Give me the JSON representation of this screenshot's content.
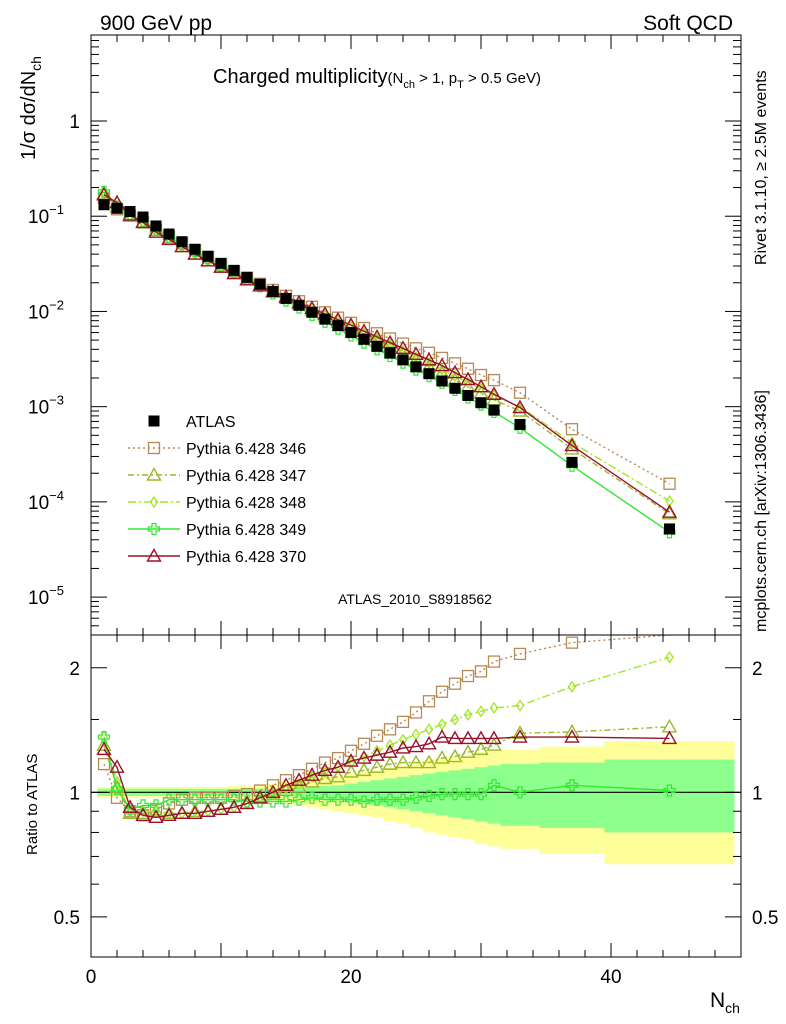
{
  "header": {
    "left": "900 GeV pp",
    "right": "Soft QCD"
  },
  "side_labels": {
    "top": "Rivet 3.1.10, ≥ 2.5M events",
    "bottom": "mcplots.cern.ch [arXiv:1306.3436]"
  },
  "chart_data": [
    {
      "type": "scatter",
      "panel": "main",
      "title_main": "Charged multiplicity",
      "title_sub": "(N",
      "title_sub_ch": "ch",
      "title_sub_mid": " > 1, p",
      "title_sub_t": "T",
      "title_sub_end": " > 0.5 GeV)",
      "ylabel_pre": "1/σ dσ/dN",
      "ylabel_sub": "ch",
      "yscale": "log",
      "xlim": [
        0,
        50
      ],
      "ylim": [
        4e-06,
        8
      ],
      "yticks": [
        {
          "value": 1,
          "label": "1",
          "exp": ""
        },
        {
          "value": 0.1,
          "label": "10",
          "exp": "−1"
        },
        {
          "value": 0.01,
          "label": "10",
          "exp": "−2"
        },
        {
          "value": 0.001,
          "label": "10",
          "exp": "−3"
        },
        {
          "value": 0.0001,
          "label": "10",
          "exp": "−4"
        },
        {
          "value": 1e-05,
          "label": "10",
          "exp": "−5"
        }
      ],
      "analysis_label": "ATLAS_2010_S8918562",
      "legend_position": "lower-left",
      "data": {
        "name": "ATLAS",
        "color": "#000000",
        "x": [
          1,
          2,
          3,
          4,
          5,
          6,
          7,
          8,
          9,
          10,
          11,
          12,
          13,
          14,
          15,
          16,
          17,
          18,
          19,
          20,
          21,
          22,
          23,
          24,
          25,
          26,
          27,
          28,
          29,
          30,
          31,
          33,
          37,
          44.5
        ],
        "y": [
          0.132,
          0.121,
          0.112,
          0.098,
          0.079,
          0.065,
          0.054,
          0.045,
          0.038,
          0.032,
          0.027,
          0.0228,
          0.0193,
          0.0162,
          0.0137,
          0.0116,
          0.0098,
          0.0083,
          0.0071,
          0.006,
          0.0051,
          0.0043,
          0.00365,
          0.0031,
          0.00262,
          0.00222,
          0.00186,
          0.00156,
          0.00131,
          0.0011,
          0.00092,
          0.00065,
          0.00026,
          5.2e-05
        ],
        "y_ratio_band": "see bands"
      },
      "series": [
        {
          "name": "Pythia 6.428 346",
          "color": "#b58a55",
          "marker": "square-open",
          "dash": "2,3",
          "x": [
            1,
            2,
            3,
            4,
            5,
            6,
            7,
            8,
            9,
            10,
            11,
            12,
            13,
            14,
            15,
            16,
            17,
            18,
            19,
            20,
            21,
            22,
            23,
            24,
            25,
            26,
            27,
            28,
            29,
            30,
            31,
            33,
            37,
            44.5
          ],
          "y": [
            0.155,
            0.118,
            0.101,
            0.086,
            0.072,
            0.061,
            0.052,
            0.044,
            0.037,
            0.031,
            0.0265,
            0.0226,
            0.0195,
            0.0168,
            0.0146,
            0.0128,
            0.0112,
            0.0098,
            0.0086,
            0.0076,
            0.0067,
            0.0059,
            0.0052,
            0.0046,
            0.0041,
            0.00368,
            0.00325,
            0.00285,
            0.0025,
            0.00215,
            0.0019,
            0.0014,
            0.00058,
            0.000155
          ]
        },
        {
          "name": "Pythia 6.428 347",
          "color": "#9ab82b",
          "marker": "triangle-open",
          "dash": "6,3,2,3",
          "x": [
            1,
            2,
            3,
            4,
            5,
            6,
            7,
            8,
            9,
            10,
            11,
            12,
            13,
            14,
            15,
            16,
            17,
            18,
            19,
            20,
            21,
            22,
            23,
            24,
            25,
            26,
            27,
            28,
            29,
            30,
            31,
            33,
            37,
            44.5
          ],
          "y": [
            0.172,
            0.125,
            0.1,
            0.087,
            0.071,
            0.058,
            0.048,
            0.04,
            0.034,
            0.0292,
            0.025,
            0.0215,
            0.0186,
            0.016,
            0.0138,
            0.012,
            0.0103,
            0.0089,
            0.0077,
            0.0067,
            0.0057,
            0.0049,
            0.00425,
            0.00362,
            0.00308,
            0.00262,
            0.00225,
            0.0019,
            0.00162,
            0.00138,
            0.00118,
            0.0009,
            0.00036,
            7.5e-05
          ]
        },
        {
          "name": "Pythia 6.428 348",
          "color": "#a3e626",
          "marker": "diamond-open",
          "dash": "8,3,2,3",
          "x": [
            1,
            2,
            3,
            4,
            5,
            6,
            7,
            8,
            9,
            10,
            11,
            12,
            13,
            14,
            15,
            16,
            17,
            18,
            19,
            20,
            21,
            22,
            23,
            24,
            25,
            26,
            27,
            28,
            29,
            30,
            31,
            33,
            37,
            44.5
          ],
          "y": [
            0.18,
            0.128,
            0.101,
            0.088,
            0.071,
            0.058,
            0.048,
            0.04,
            0.034,
            0.0292,
            0.025,
            0.0215,
            0.0186,
            0.0161,
            0.0139,
            0.0121,
            0.0105,
            0.0091,
            0.0079,
            0.0069,
            0.006,
            0.0052,
            0.0045,
            0.00385,
            0.0033,
            0.00285,
            0.00245,
            0.0021,
            0.0018,
            0.00155,
            0.00132,
            0.001,
            0.00042,
            0.000102
          ]
        },
        {
          "name": "Pythia 6.428 349",
          "color": "#33e633",
          "marker": "cross-open",
          "dash": "",
          "x": [
            1,
            2,
            3,
            4,
            5,
            6,
            7,
            8,
            9,
            10,
            11,
            12,
            13,
            14,
            15,
            16,
            17,
            18,
            19,
            20,
            21,
            22,
            23,
            24,
            25,
            26,
            27,
            28,
            29,
            30,
            31,
            33,
            37,
            44.5
          ],
          "y": [
            0.18,
            0.125,
            0.101,
            0.088,
            0.072,
            0.061,
            0.051,
            0.043,
            0.036,
            0.0305,
            0.0258,
            0.0217,
            0.0184,
            0.0154,
            0.013,
            0.011,
            0.0092,
            0.0078,
            0.0066,
            0.0056,
            0.0047,
            0.004,
            0.0034,
            0.0029,
            0.00245,
            0.0021,
            0.00178,
            0.0015,
            0.00125,
            0.00105,
            0.00088,
            0.0006,
            0.00024,
            4.8e-05
          ]
        },
        {
          "name": "Pythia 6.428 370",
          "color": "#99122b",
          "marker": "triangle-open",
          "dash": "",
          "x": [
            1,
            2,
            3,
            4,
            5,
            6,
            7,
            8,
            9,
            10,
            11,
            12,
            13,
            14,
            15,
            16,
            17,
            18,
            19,
            20,
            21,
            22,
            23,
            24,
            25,
            26,
            27,
            28,
            29,
            30,
            31,
            33,
            37,
            44.5
          ],
          "y": [
            0.168,
            0.139,
            0.103,
            0.086,
            0.068,
            0.057,
            0.048,
            0.04,
            0.034,
            0.0292,
            0.025,
            0.0215,
            0.0186,
            0.0162,
            0.0142,
            0.0124,
            0.0108,
            0.0094,
            0.0082,
            0.0072,
            0.0062,
            0.0054,
            0.0047,
            0.0041,
            0.00355,
            0.0031,
            0.0027,
            0.00228,
            0.00193,
            0.00162,
            0.00135,
            0.00098,
            0.00039,
            7.8e-05
          ]
        }
      ]
    },
    {
      "type": "line",
      "panel": "ratio",
      "ylabel": "Ratio to ATLAS",
      "xlabel_pre": "N",
      "xlabel_sub": "ch",
      "yscale": "log",
      "xlim": [
        0,
        50
      ],
      "ylim": [
        0.4,
        2.4
      ],
      "xticks": [
        0,
        20,
        40
      ],
      "yticks": [
        0.5,
        1,
        2
      ],
      "reference": 1,
      "bands": {
        "edges": [
          0.5,
          1.5,
          2.5,
          3.5,
          4.5,
          5.5,
          6.5,
          7.5,
          8.5,
          9.5,
          10.5,
          11.5,
          12.5,
          13.5,
          14.5,
          15.5,
          16.5,
          17.5,
          18.5,
          19.5,
          20.5,
          21.5,
          22.5,
          23.5,
          24.5,
          25.5,
          26.5,
          27.5,
          28.5,
          29.5,
          30.5,
          31.5,
          34.5,
          39.5,
          49.5
        ],
        "inner_color": "#8cff8c",
        "outer_color": "#ffff99",
        "inner_half": [
          0.02,
          0.02,
          0.02,
          0.02,
          0.02,
          0.02,
          0.02,
          0.02,
          0.02,
          0.02,
          0.02,
          0.02,
          0.02,
          0.02,
          0.02,
          0.025,
          0.03,
          0.035,
          0.04,
          0.05,
          0.06,
          0.07,
          0.08,
          0.09,
          0.1,
          0.11,
          0.12,
          0.13,
          0.14,
          0.15,
          0.16,
          0.17,
          0.18,
          0.2
        ],
        "outer_half": [
          0.03,
          0.03,
          0.03,
          0.03,
          0.03,
          0.03,
          0.03,
          0.03,
          0.03,
          0.03,
          0.035,
          0.04,
          0.045,
          0.05,
          0.06,
          0.07,
          0.08,
          0.09,
          0.1,
          0.11,
          0.12,
          0.13,
          0.15,
          0.16,
          0.18,
          0.2,
          0.21,
          0.22,
          0.23,
          0.25,
          0.26,
          0.27,
          0.29,
          0.33
        ]
      },
      "series": [
        {
          "name": "Pythia 6.428 346",
          "color": "#b58a55",
          "x": [
            1,
            2,
            3,
            4,
            5,
            6,
            7,
            8,
            9,
            10,
            11,
            12,
            13,
            14,
            15,
            16,
            17,
            18,
            19,
            20,
            21,
            22,
            23,
            24,
            25,
            26,
            27,
            28,
            29,
            30,
            31,
            33,
            37,
            44.5
          ],
          "y": [
            1.17,
            0.97,
            0.9,
            0.88,
            0.91,
            0.94,
            0.96,
            0.97,
            0.97,
            0.97,
            0.98,
            0.99,
            1.01,
            1.04,
            1.07,
            1.1,
            1.14,
            1.18,
            1.21,
            1.26,
            1.31,
            1.37,
            1.42,
            1.48,
            1.56,
            1.66,
            1.75,
            1.83,
            1.91,
            1.96,
            2.07,
            2.16,
            2.3,
            2.6
          ]
        },
        {
          "name": "Pythia 6.428 347",
          "color": "#9ab82b",
          "x": [
            1,
            2,
            3,
            4,
            5,
            6,
            7,
            8,
            9,
            10,
            11,
            12,
            13,
            14,
            15,
            16,
            17,
            18,
            19,
            20,
            21,
            22,
            23,
            24,
            25,
            26,
            27,
            28,
            29,
            30,
            31,
            33,
            37,
            44.5
          ],
          "y": [
            1.3,
            1.03,
            0.89,
            0.89,
            0.9,
            0.89,
            0.89,
            0.9,
            0.9,
            0.91,
            0.92,
            0.94,
            0.97,
            0.99,
            1.01,
            1.03,
            1.06,
            1.08,
            1.09,
            1.12,
            1.13,
            1.15,
            1.17,
            1.18,
            1.18,
            1.18,
            1.21,
            1.22,
            1.25,
            1.27,
            1.3,
            1.39,
            1.4,
            1.44
          ]
        },
        {
          "name": "Pythia 6.428 348",
          "color": "#a3e626",
          "x": [
            1,
            2,
            3,
            4,
            5,
            6,
            7,
            8,
            9,
            10,
            11,
            12,
            13,
            14,
            15,
            16,
            17,
            18,
            19,
            20,
            21,
            22,
            23,
            24,
            25,
            26,
            27,
            28,
            29,
            30,
            31,
            33,
            37,
            44.5
          ],
          "y": [
            1.36,
            1.06,
            0.9,
            0.9,
            0.9,
            0.89,
            0.89,
            0.9,
            0.9,
            0.91,
            0.92,
            0.94,
            0.97,
            1.0,
            1.02,
            1.05,
            1.09,
            1.12,
            1.15,
            1.18,
            1.22,
            1.26,
            1.3,
            1.34,
            1.38,
            1.42,
            1.46,
            1.5,
            1.54,
            1.57,
            1.6,
            1.62,
            1.8,
            2.12
          ]
        },
        {
          "name": "Pythia 6.428 349",
          "color": "#33e633",
          "x": [
            1,
            2,
            3,
            4,
            5,
            6,
            7,
            8,
            9,
            10,
            11,
            12,
            13,
            14,
            15,
            16,
            17,
            18,
            19,
            20,
            21,
            22,
            23,
            24,
            25,
            26,
            27,
            28,
            29,
            30,
            31,
            33,
            37,
            44.5
          ],
          "y": [
            1.36,
            1.02,
            0.91,
            0.93,
            0.93,
            0.96,
            0.96,
            0.96,
            0.96,
            0.96,
            0.96,
            0.95,
            0.95,
            0.95,
            0.95,
            0.96,
            0.97,
            0.96,
            0.96,
            0.96,
            0.95,
            0.96,
            0.96,
            0.96,
            0.97,
            0.98,
            0.99,
            0.99,
            0.99,
            0.99,
            1.04,
            1.0,
            1.04,
            1.01
          ]
        },
        {
          "name": "Pythia 6.428 370",
          "color": "#99122b",
          "x": [
            1,
            2,
            3,
            4,
            5,
            6,
            7,
            8,
            9,
            10,
            11,
            12,
            13,
            14,
            15,
            16,
            17,
            18,
            19,
            20,
            21,
            22,
            23,
            24,
            25,
            26,
            27,
            28,
            29,
            30,
            31,
            33,
            37,
            44.5
          ],
          "y": [
            1.27,
            1.15,
            0.92,
            0.88,
            0.87,
            0.88,
            0.89,
            0.89,
            0.9,
            0.91,
            0.92,
            0.94,
            0.97,
            1.0,
            1.04,
            1.07,
            1.1,
            1.13,
            1.15,
            1.19,
            1.21,
            1.23,
            1.25,
            1.28,
            1.29,
            1.31,
            1.36,
            1.35,
            1.35,
            1.35,
            1.35,
            1.36,
            1.36,
            1.35
          ]
        }
      ]
    }
  ]
}
